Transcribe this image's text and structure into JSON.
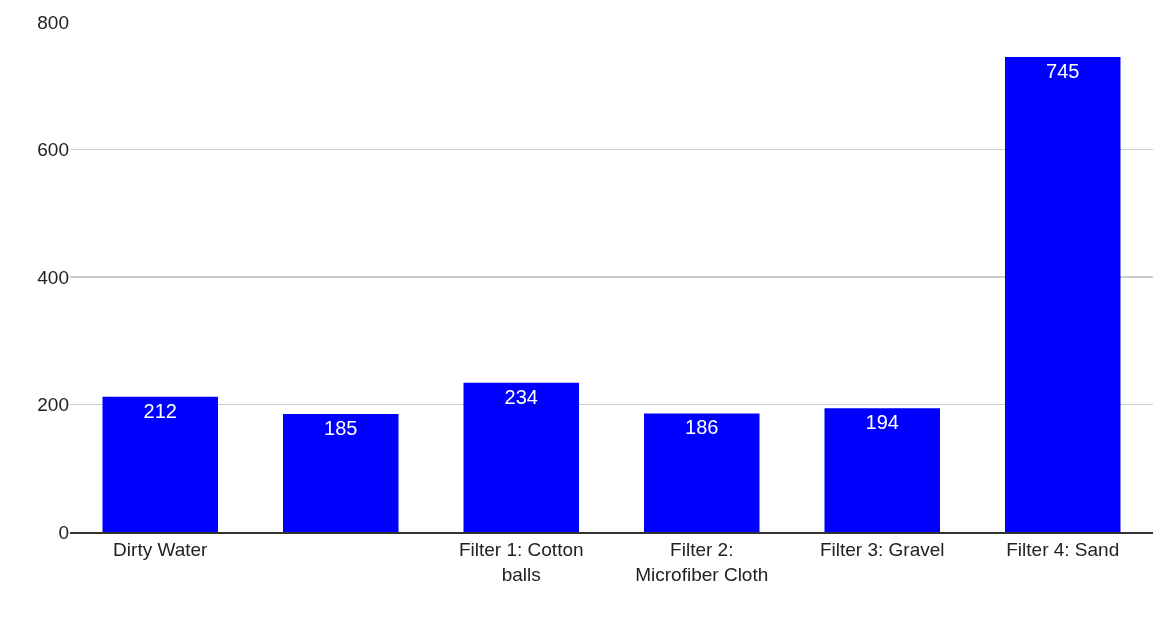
{
  "chart_data": {
    "type": "bar",
    "categories": [
      "Dirty Water",
      null,
      "Filter 1: Cotton balls",
      "Filter 2: Microfiber Cloth",
      "Filter 3: Gravel",
      "Filter 4: Sand"
    ],
    "values": [
      212,
      185,
      234,
      186,
      194,
      745
    ],
    "color": "#0000ff",
    "ylim": [
      0,
      800
    ],
    "yticks": [
      0,
      200,
      400,
      600,
      800
    ],
    "grid": "y",
    "data_labels": true
  }
}
